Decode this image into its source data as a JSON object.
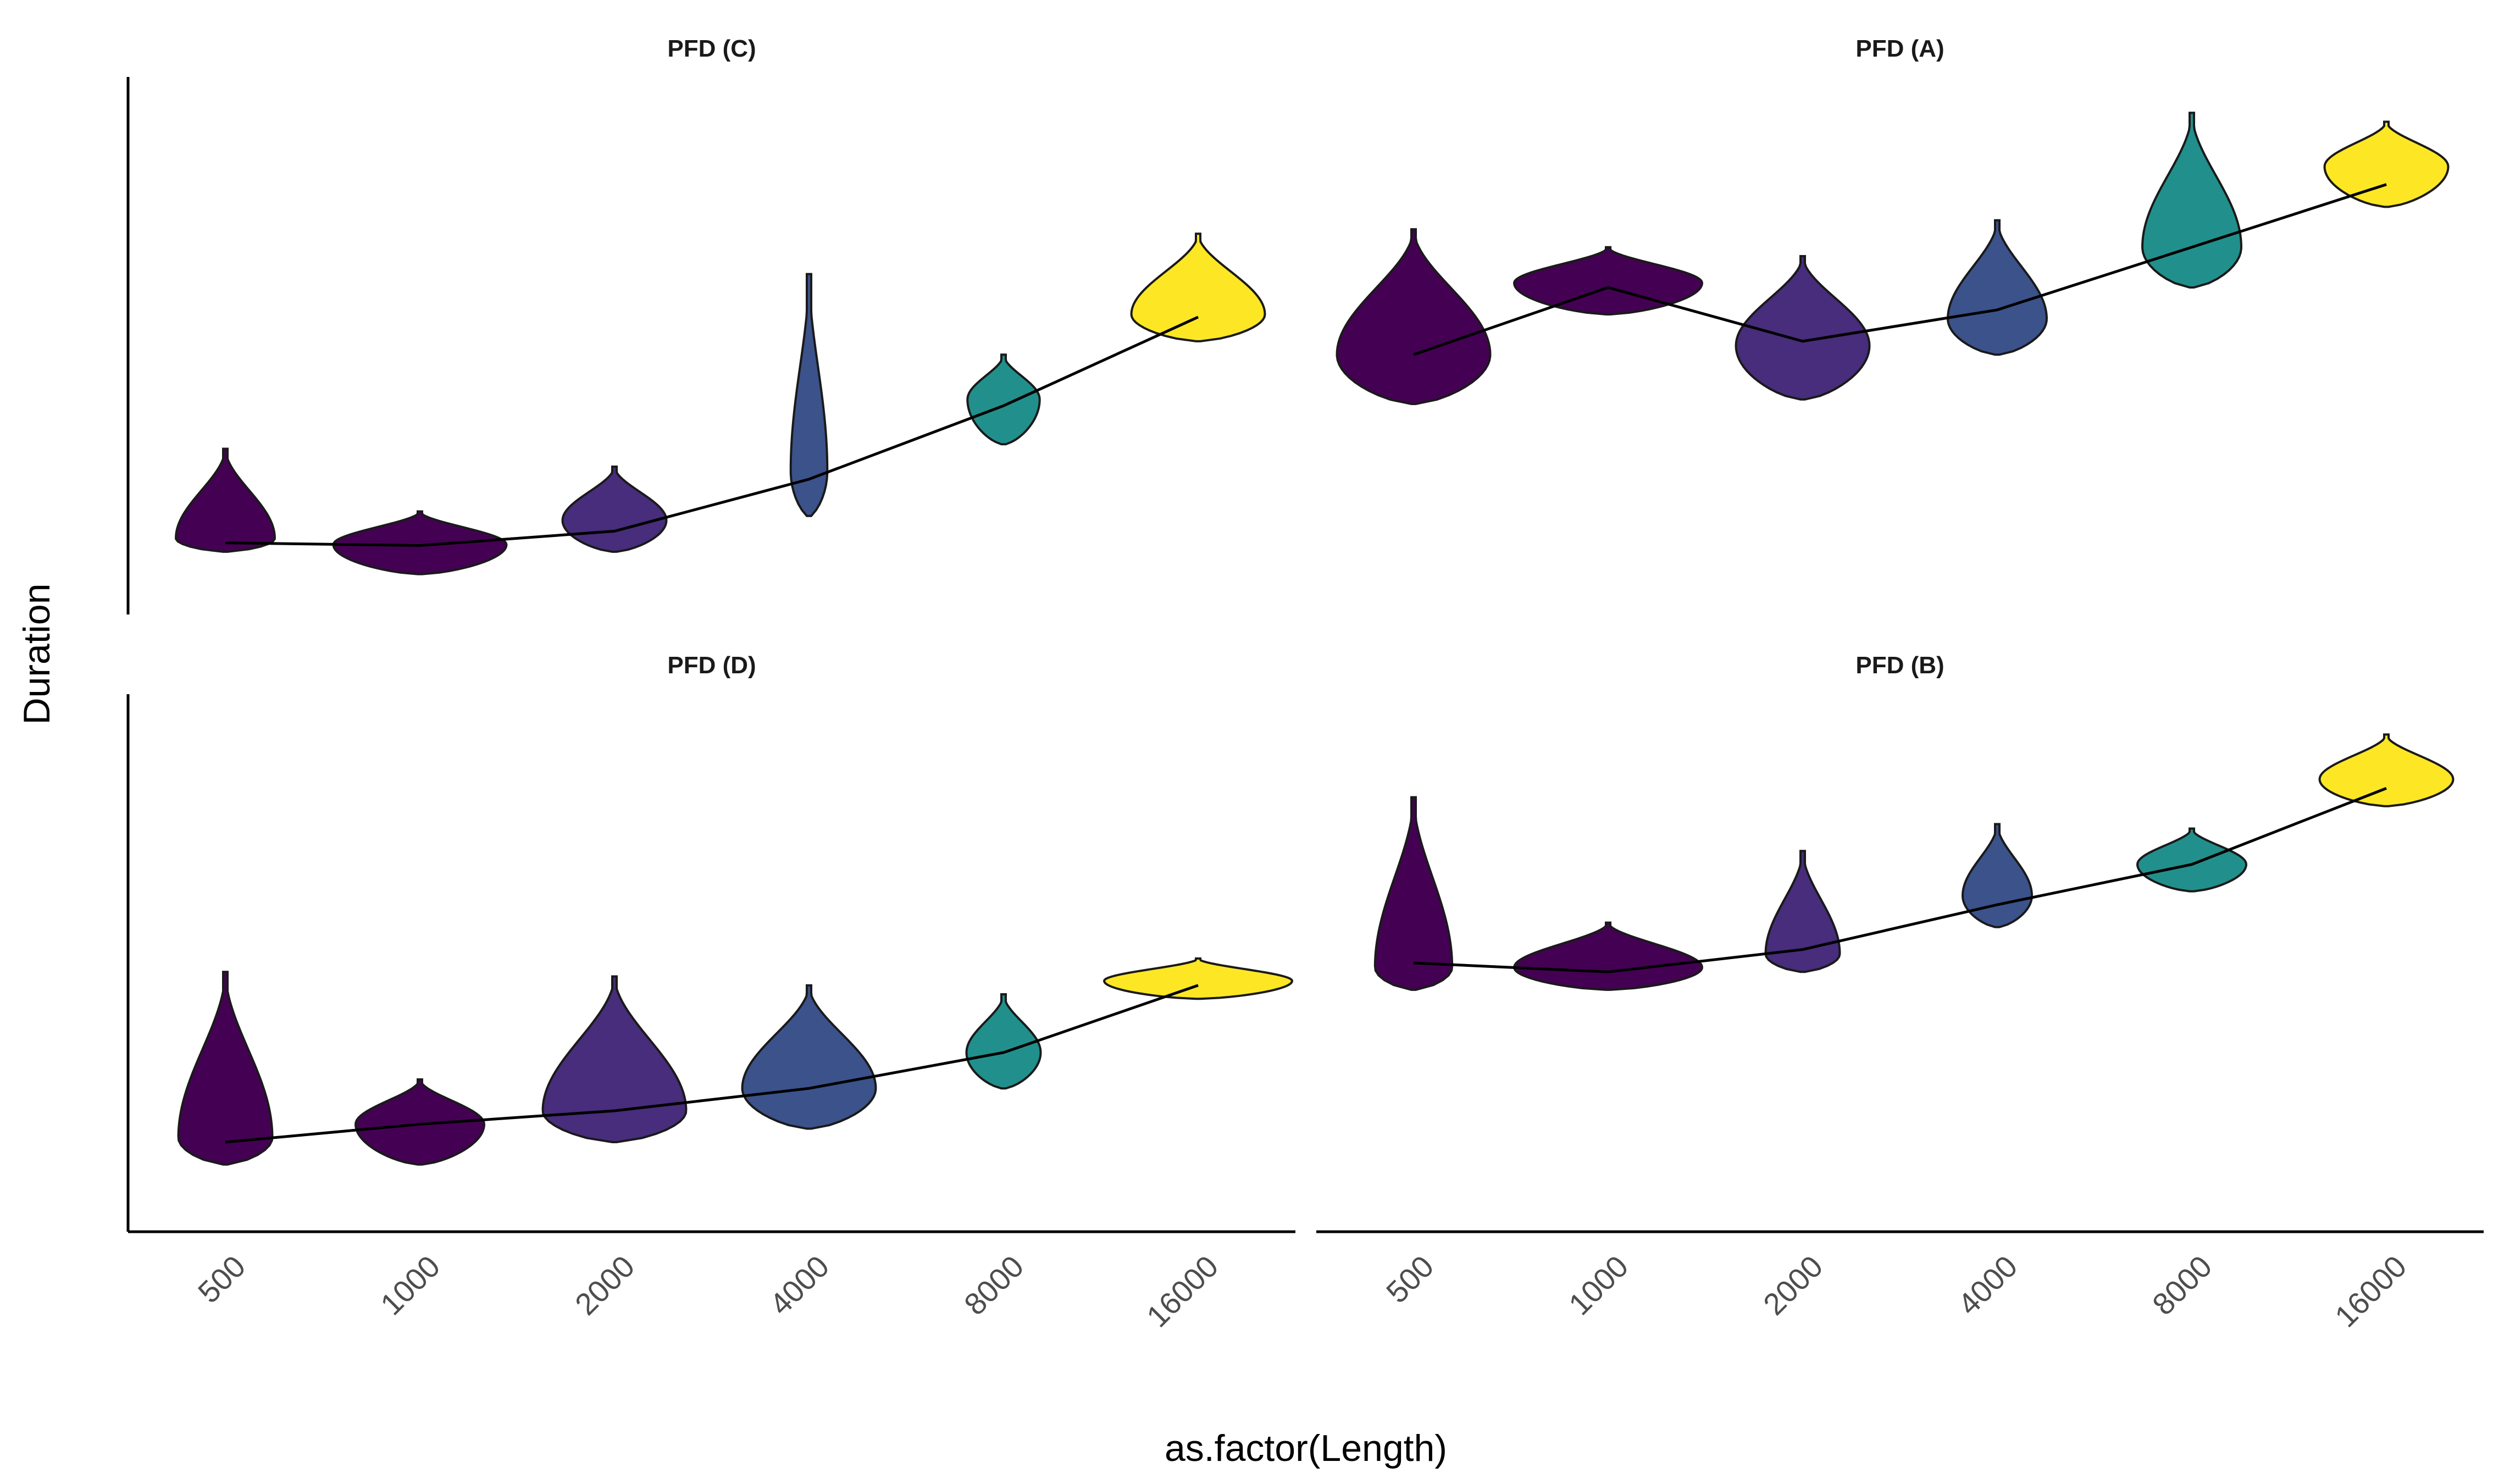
{
  "chart_data": {
    "type": "violin",
    "xlabel": "as.factor(Length)",
    "ylabel": "Duration",
    "categories": [
      "500",
      "1000",
      "2000",
      "4000",
      "8000",
      "16000"
    ],
    "y_scale": "relative (no tick labels shown)",
    "grid": false,
    "legend": "none",
    "fill_colors": [
      "#440154",
      "#440154",
      "#472D7B",
      "#3B528B",
      "#21908C",
      "#FDE725"
    ],
    "panels": [
      {
        "title": "PFD (C)",
        "position": "top-left",
        "mean_line": [
          0.08,
          0.077,
          0.093,
          0.151,
          0.233,
          0.332
        ],
        "violins": [
          {
            "category": "500",
            "lo": 0.07,
            "hi": 0.185,
            "mode": 0.085,
            "width": 1.0
          },
          {
            "category": "1000",
            "lo": 0.045,
            "hi": 0.115,
            "mode": 0.078,
            "width": 1.75
          },
          {
            "category": "2000",
            "lo": 0.07,
            "hi": 0.165,
            "mode": 0.105,
            "width": 1.05
          },
          {
            "category": "4000",
            "lo": 0.11,
            "hi": 0.38,
            "mode": 0.16,
            "width": 0.37
          },
          {
            "category": "8000",
            "lo": 0.19,
            "hi": 0.29,
            "mode": 0.24,
            "width": 0.73
          },
          {
            "category": "16000",
            "lo": 0.305,
            "hi": 0.425,
            "mode": 0.335,
            "width": 1.35
          }
        ]
      },
      {
        "title": "PFD (A)",
        "position": "top-right",
        "mean_line": [
          0.29,
          0.365,
          0.305,
          0.34,
          0.41,
          0.48
        ],
        "violins": [
          {
            "category": "500",
            "lo": 0.235,
            "hi": 0.43,
            "mode": 0.29,
            "width": 1.55
          },
          {
            "category": "1000",
            "lo": 0.335,
            "hi": 0.41,
            "mode": 0.37,
            "width": 1.9
          },
          {
            "category": "2000",
            "lo": 0.24,
            "hi": 0.4,
            "mode": 0.3,
            "width": 1.35
          },
          {
            "category": "4000",
            "lo": 0.29,
            "hi": 0.44,
            "mode": 0.33,
            "width": 1.0
          },
          {
            "category": "8000",
            "lo": 0.365,
            "hi": 0.56,
            "mode": 0.41,
            "width": 1.0
          },
          {
            "category": "16000",
            "lo": 0.455,
            "hi": 0.55,
            "mode": 0.5,
            "width": 1.25
          }
        ]
      },
      {
        "title": "PFD (D)",
        "position": "bottom-left",
        "mean_line": [
          0.5,
          0.52,
          0.535,
          0.56,
          0.6,
          0.675
        ],
        "violins": [
          {
            "category": "500",
            "lo": 0.475,
            "hi": 0.69,
            "mode": 0.505,
            "width": 0.95
          },
          {
            "category": "1000",
            "lo": 0.475,
            "hi": 0.57,
            "mode": 0.52,
            "width": 1.3
          },
          {
            "category": "2000",
            "lo": 0.5,
            "hi": 0.685,
            "mode": 0.535,
            "width": 1.45
          },
          {
            "category": "4000",
            "lo": 0.515,
            "hi": 0.675,
            "mode": 0.56,
            "width": 1.35
          },
          {
            "category": "8000",
            "lo": 0.56,
            "hi": 0.665,
            "mode": 0.6,
            "width": 0.75
          },
          {
            "category": "16000",
            "lo": 0.66,
            "hi": 0.705,
            "mode": 0.68,
            "width": 1.9
          }
        ]
      },
      {
        "title": "PFD (B)",
        "position": "bottom-right",
        "mean_line": [
          0.7,
          0.69,
          0.715,
          0.765,
          0.81,
          0.895
        ],
        "violins": [
          {
            "category": "500",
            "lo": 0.67,
            "hi": 0.885,
            "mode": 0.695,
            "width": 0.78
          },
          {
            "category": "1000",
            "lo": 0.67,
            "hi": 0.745,
            "mode": 0.695,
            "width": 1.9
          },
          {
            "category": "2000",
            "lo": 0.69,
            "hi": 0.825,
            "mode": 0.71,
            "width": 0.75
          },
          {
            "category": "4000",
            "lo": 0.74,
            "hi": 0.855,
            "mode": 0.775,
            "width": 0.7
          },
          {
            "category": "8000",
            "lo": 0.78,
            "hi": 0.85,
            "mode": 0.81,
            "width": 1.1
          },
          {
            "category": "16000",
            "lo": 0.875,
            "hi": 0.955,
            "mode": 0.905,
            "width": 1.35
          }
        ]
      }
    ]
  }
}
